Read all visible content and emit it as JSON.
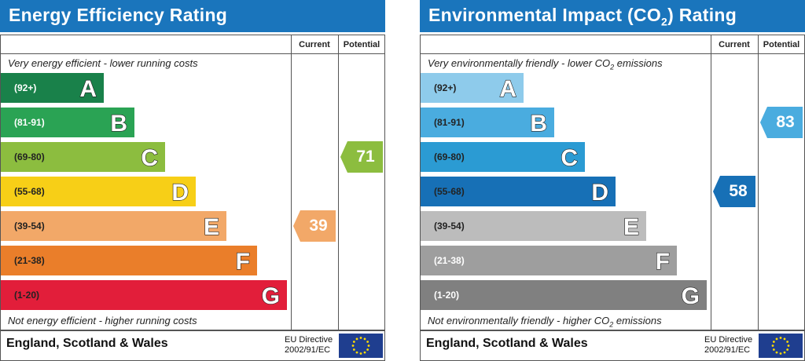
{
  "chart_data": [
    {
      "type": "bar",
      "title": "Energy Efficiency Rating",
      "columns": {
        "current": "Current",
        "potential": "Potential"
      },
      "top_caption": "Very energy efficient - lower running costs",
      "bottom_caption": "Not energy efficient - higher running costs",
      "footer": "England, Scotland & Wales",
      "directive": [
        "EU Directive",
        "2002/91/EC"
      ],
      "bands": [
        {
          "range": "(92+)",
          "letter": "A",
          "color": "#19814a",
          "label_color": "#ffffff"
        },
        {
          "range": "(81-91)",
          "letter": "B",
          "color": "#2aa354",
          "label_color": "#ffffff"
        },
        {
          "range": "(69-80)",
          "letter": "C",
          "color": "#8cbd3f",
          "label_color": "#222222"
        },
        {
          "range": "(55-68)",
          "letter": "D",
          "color": "#f7cf17",
          "label_color": "#222222"
        },
        {
          "range": "(39-54)",
          "letter": "E",
          "color": "#f2a868",
          "label_color": "#222222"
        },
        {
          "range": "(21-38)",
          "letter": "F",
          "color": "#ea7e2a",
          "label_color": "#222222"
        },
        {
          "range": "(1-20)",
          "letter": "G",
          "color": "#e21e3a",
          "label_color": "#222222"
        }
      ],
      "current": {
        "value": 39,
        "band": "E",
        "color": "#f2a868"
      },
      "potential": {
        "value": 71,
        "band": "C",
        "color": "#8cbd3f"
      }
    },
    {
      "type": "bar",
      "title_prefix": "Environmental Impact (CO",
      "title_sub": "2",
      "title_suffix": ") Rating",
      "columns": {
        "current": "Current",
        "potential": "Potential"
      },
      "top_caption_prefix": "Very environmentally friendly - lower CO",
      "top_caption_sub": "2",
      "top_caption_suffix": " emissions",
      "bottom_caption_prefix": "Not environmentally friendly - higher CO",
      "bottom_caption_sub": "2",
      "bottom_caption_suffix": " emissions",
      "footer": "England, Scotland & Wales",
      "directive": [
        "EU Directive",
        "2002/91/EC"
      ],
      "bands": [
        {
          "range": "(92+)",
          "letter": "A",
          "color": "#8ecbeb",
          "label_color": "#222222"
        },
        {
          "range": "(81-91)",
          "letter": "B",
          "color": "#4aacdf",
          "label_color": "#222222"
        },
        {
          "range": "(69-80)",
          "letter": "C",
          "color": "#2b9bd3",
          "label_color": "#222222"
        },
        {
          "range": "(55-68)",
          "letter": "D",
          "color": "#1770b6",
          "label_color": "#222222"
        },
        {
          "range": "(39-54)",
          "letter": "E",
          "color": "#bcbcbc",
          "label_color": "#222222"
        },
        {
          "range": "(21-38)",
          "letter": "F",
          "color": "#9e9e9e",
          "label_color": "#ffffff"
        },
        {
          "range": "(1-20)",
          "letter": "G",
          "color": "#808080",
          "label_color": "#ffffff"
        }
      ],
      "current": {
        "value": 58,
        "band": "D",
        "color": "#1770b6"
      },
      "potential": {
        "value": 83,
        "band": "B",
        "color": "#4aacdf"
      }
    }
  ],
  "colors": {
    "title_bar": "#1a75bc",
    "eu_flag": "#1f3e8f",
    "eu_star": "#ffdd00"
  }
}
